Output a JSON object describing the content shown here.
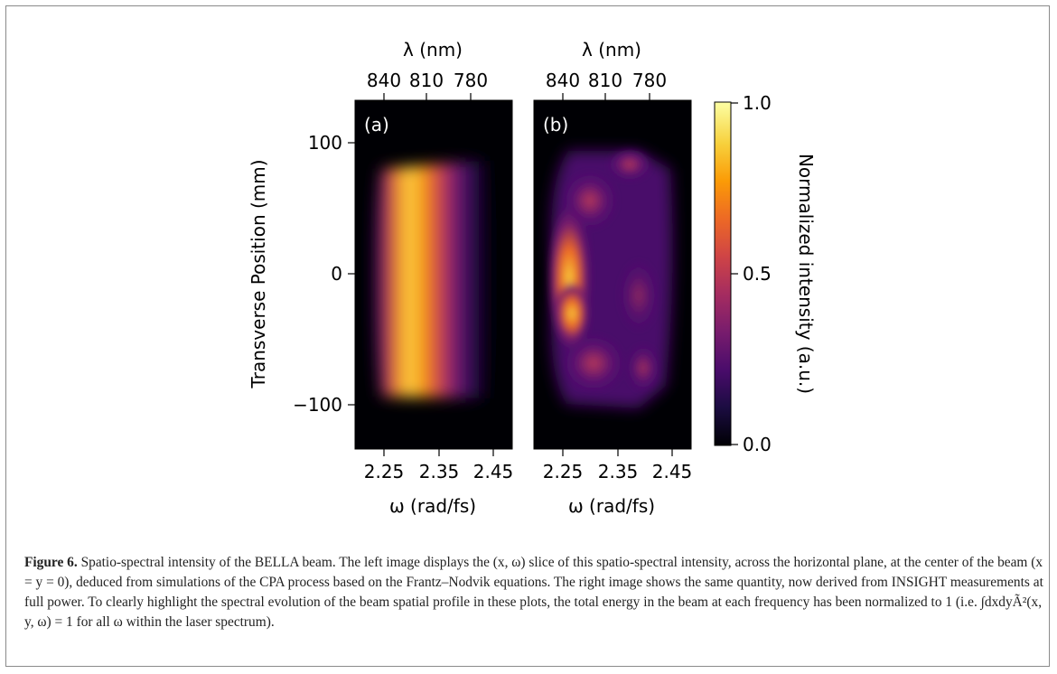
{
  "figure": {
    "panels": [
      {
        "label": "(a)"
      },
      {
        "label": "(b)"
      }
    ],
    "top_axis_label": "λ (nm)",
    "top_ticks": [
      "840",
      "810",
      "780"
    ],
    "bottom_axis_label": "ω (rad/fs)",
    "bottom_ticks": [
      "2.25",
      "2.35",
      "2.45"
    ],
    "y_axis_label": "Transverse Position (mm)",
    "y_ticks": [
      "100",
      "0",
      "−100"
    ],
    "colorbar_label": "Normalized intensity (a.u.)",
    "colorbar_ticks": [
      "1.0",
      "0.5",
      "0.0"
    ],
    "colormap": [
      "#000004",
      "#1b0c41",
      "#4a0c6b",
      "#781c6d",
      "#a52c60",
      "#cf4446",
      "#ed6925",
      "#fb9b06",
      "#f7d13d",
      "#fcffa4"
    ]
  },
  "chart_data": {
    "type": "heatmap",
    "title": "",
    "xlabel": "ω (rad/fs)",
    "x2label": "λ (nm)",
    "ylabel": "Transverse Position (mm)",
    "xlim": [
      2.19,
      2.48
    ],
    "ylim": [
      -130,
      130
    ],
    "x_ticks": [
      2.25,
      2.35,
      2.45
    ],
    "x2_ticks_nm": [
      840,
      810,
      780
    ],
    "y_ticks": [
      100,
      0,
      -100
    ],
    "colorbar": {
      "label": "Normalized intensity (a.u.)",
      "range": [
        0.0,
        1.0
      ],
      "ticks": [
        0.0,
        0.5,
        1.0
      ],
      "colormap": "inferno"
    },
    "panels": [
      "(a)",
      "(b)"
    ]
  },
  "caption": {
    "label": "Figure 6.",
    "text": " Spatio-spectral intensity of the BELLA beam. The left image displays the (x, ω) slice of this spatio-spectral intensity, across the horizontal plane, at the center of the beam (x = y = 0), deduced from simulations of the CPA process based on the Frantz–Nodvik equations. The right image shows the same quantity, now derived from INSIGHT measurements at full power. To clearly highlight the spectral evolution of the beam spatial profile in these plots, the total energy in the beam at each frequency has been normalized to 1 (i.e. ∫dxdyÃ²(x, y, ω) = 1 for all ω within the laser spectrum)."
  }
}
